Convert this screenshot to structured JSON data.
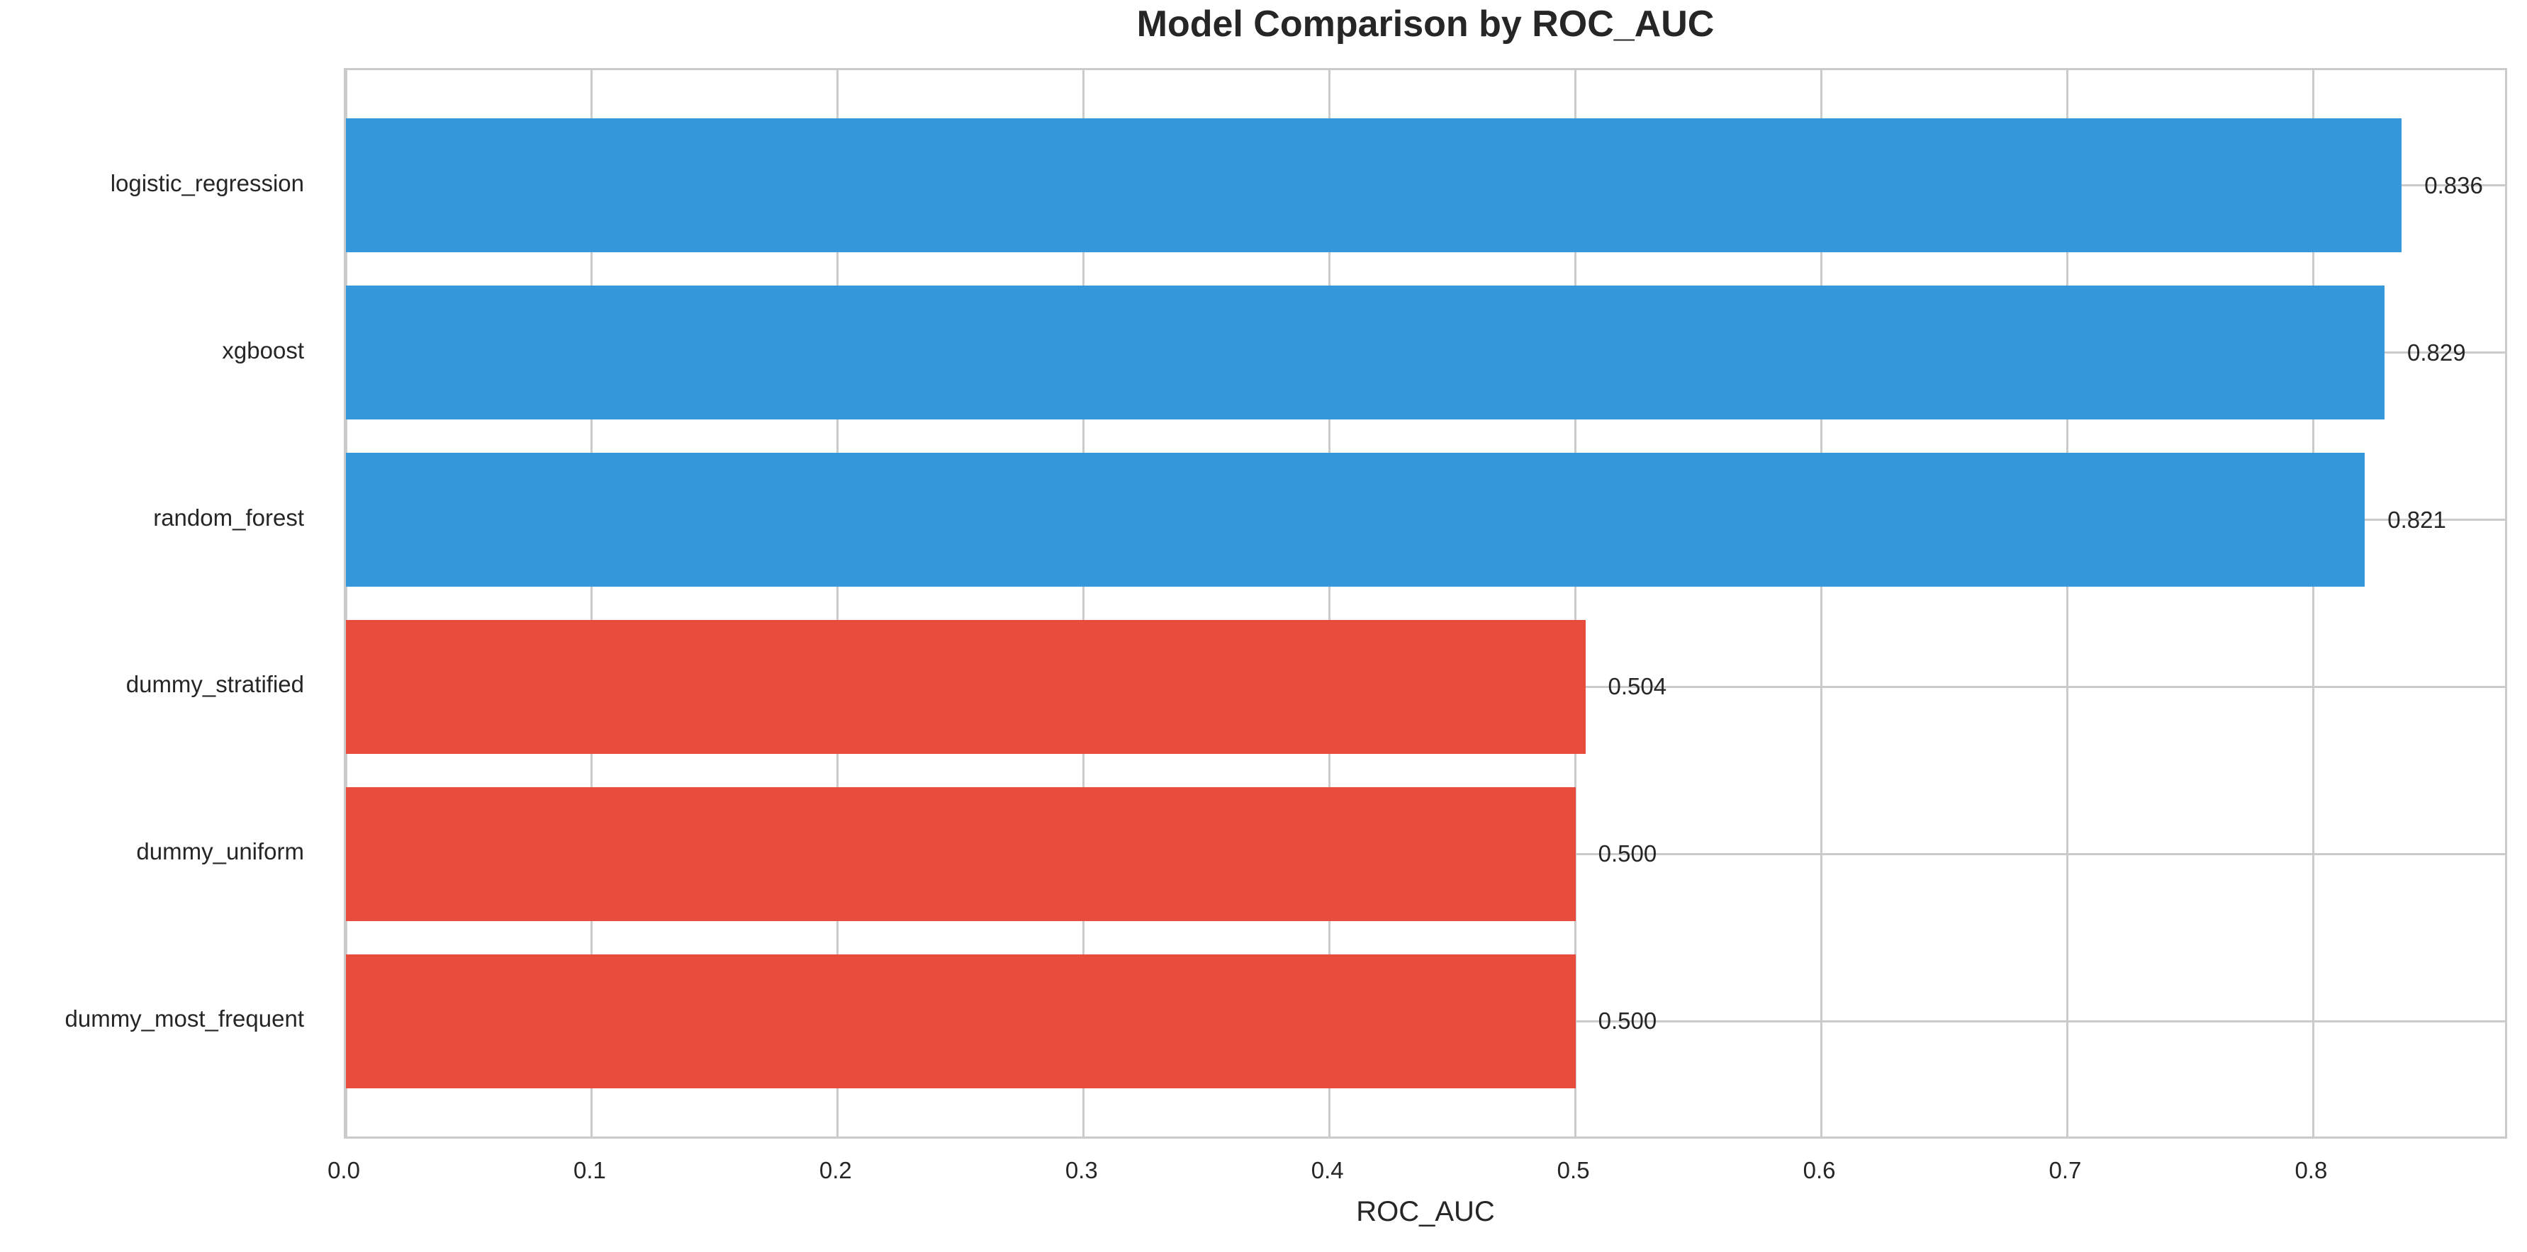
{
  "chart_data": {
    "type": "bar",
    "orientation": "horizontal",
    "title": "Model Comparison by ROC_AUC",
    "xlabel": "ROC_AUC",
    "ylabel": "",
    "categories": [
      "logistic_regression",
      "xgboost",
      "random_forest",
      "dummy_stratified",
      "dummy_uniform",
      "dummy_most_frequent"
    ],
    "values": [
      0.836,
      0.829,
      0.821,
      0.504,
      0.5,
      0.5
    ],
    "value_labels": [
      "0.836",
      "0.829",
      "0.821",
      "0.504",
      "0.500",
      "0.500"
    ],
    "bar_colors": [
      "#3498db",
      "#3498db",
      "#3498db",
      "#e74c3c",
      "#e74c3c",
      "#e74c3c"
    ],
    "xticks": [
      0.0,
      0.1,
      0.2,
      0.3,
      0.4,
      0.5,
      0.6,
      0.7,
      0.8
    ],
    "xtick_labels": [
      "0.0",
      "0.1",
      "0.2",
      "0.3",
      "0.4",
      "0.5",
      "0.6",
      "0.7",
      "0.8"
    ],
    "xlim": [
      0,
      0.878
    ],
    "grid": true,
    "legend_position": "none",
    "colors": {
      "model_bar": "#3498db",
      "baseline_bar": "#e74c3c",
      "grid": "#cbcbcb",
      "spine": "#cbcbcb",
      "text": "#262626",
      "background": "#ffffff"
    }
  }
}
